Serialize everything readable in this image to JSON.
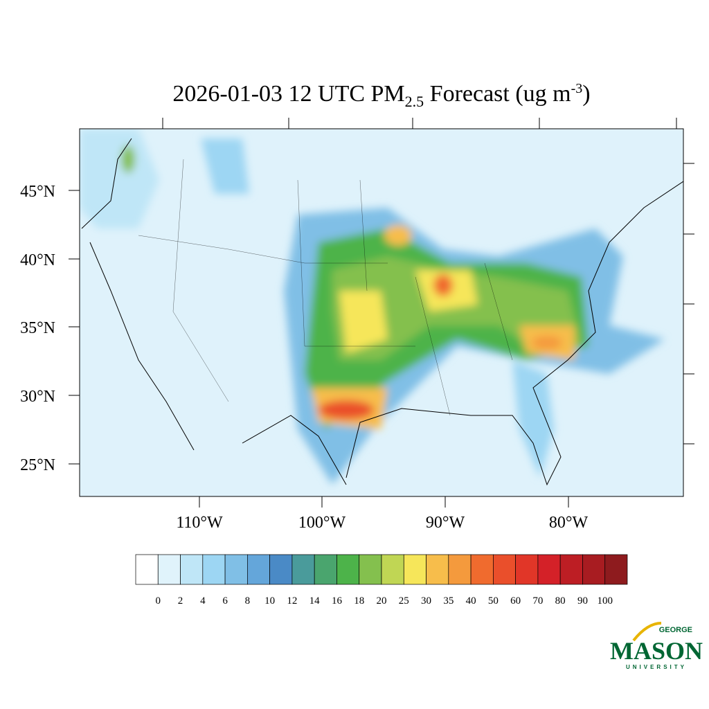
{
  "title": {
    "main": "2026-01-03 12 UTC PM",
    "sub": "2.5",
    "rest": " Forecast (ug m",
    "sup": "-3",
    "end": ")"
  },
  "map": {
    "lat_labels": [
      "45°N",
      "40°N",
      "35°N",
      "30°N",
      "25°N"
    ],
    "lon_labels": [
      "110°W",
      "100°W",
      "90°W",
      "80°W"
    ]
  },
  "colorbar": {
    "levels": [
      0,
      2,
      4,
      6,
      8,
      10,
      12,
      14,
      16,
      18,
      20,
      25,
      30,
      35,
      40,
      50,
      60,
      70,
      80,
      90,
      100
    ],
    "colors": [
      "#ffffff",
      "#e0f3fb",
      "#bfe6f7",
      "#9dd6f3",
      "#80bfe6",
      "#64a6da",
      "#4a8ac6",
      "#4a9b9b",
      "#4aa56e",
      "#4db34a",
      "#84c04e",
      "#c0d654",
      "#f6e65a",
      "#f7bd4b",
      "#f49a3d",
      "#f06b2e",
      "#ea4f2b",
      "#e13628",
      "#d42128",
      "#bd1e24",
      "#a81c21",
      "#8e1b1e"
    ]
  },
  "logo": {
    "top": "GEORGE",
    "main": "MASON",
    "bottom": "UNIVERSITY"
  }
}
